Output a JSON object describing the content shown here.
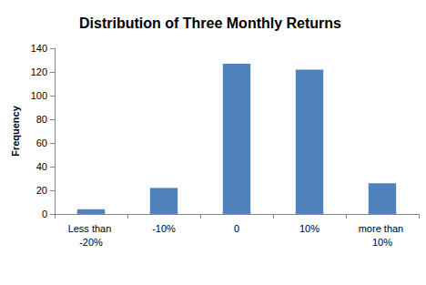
{
  "chart_data": {
    "type": "bar",
    "title": "Distribution of Three Monthly Returns",
    "y_label": "Frequency",
    "categories": [
      "Less than -20%",
      "-10%",
      "0",
      "10%",
      "more than 10%"
    ],
    "values": [
      4,
      22,
      127,
      122,
      26
    ],
    "color": "#4f81bd",
    "ylim": [
      0,
      140
    ],
    "yticks": [
      0,
      20,
      40,
      60,
      80,
      100,
      120,
      140
    ],
    "grid": false
  }
}
